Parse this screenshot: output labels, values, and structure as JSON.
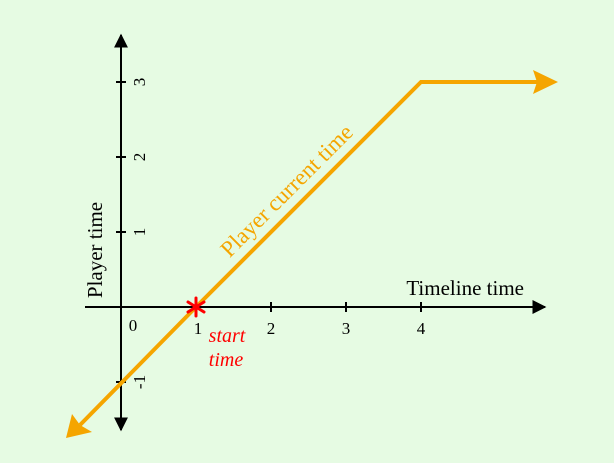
{
  "colors": {
    "background": "#e6fbe3",
    "axis": "#000000",
    "line": "#f5a500",
    "marker": "#ff0000"
  },
  "axes": {
    "x_label": "Timeline time",
    "y_label": "Player time",
    "x_ticks": [
      "0",
      "1",
      "2",
      "3",
      "4"
    ],
    "y_ticks": [
      "-1",
      "1",
      "2",
      "3"
    ]
  },
  "line": {
    "label": "Player current time",
    "points": [
      {
        "timeline": -0.7,
        "player": -1.7
      },
      {
        "timeline": 1,
        "player": 0
      },
      {
        "timeline": 4,
        "player": 3
      },
      {
        "timeline": 5.8,
        "player": 3
      }
    ]
  },
  "marker": {
    "label_line1": "start",
    "label_line2": "time",
    "timeline": 1,
    "player": 0
  }
}
